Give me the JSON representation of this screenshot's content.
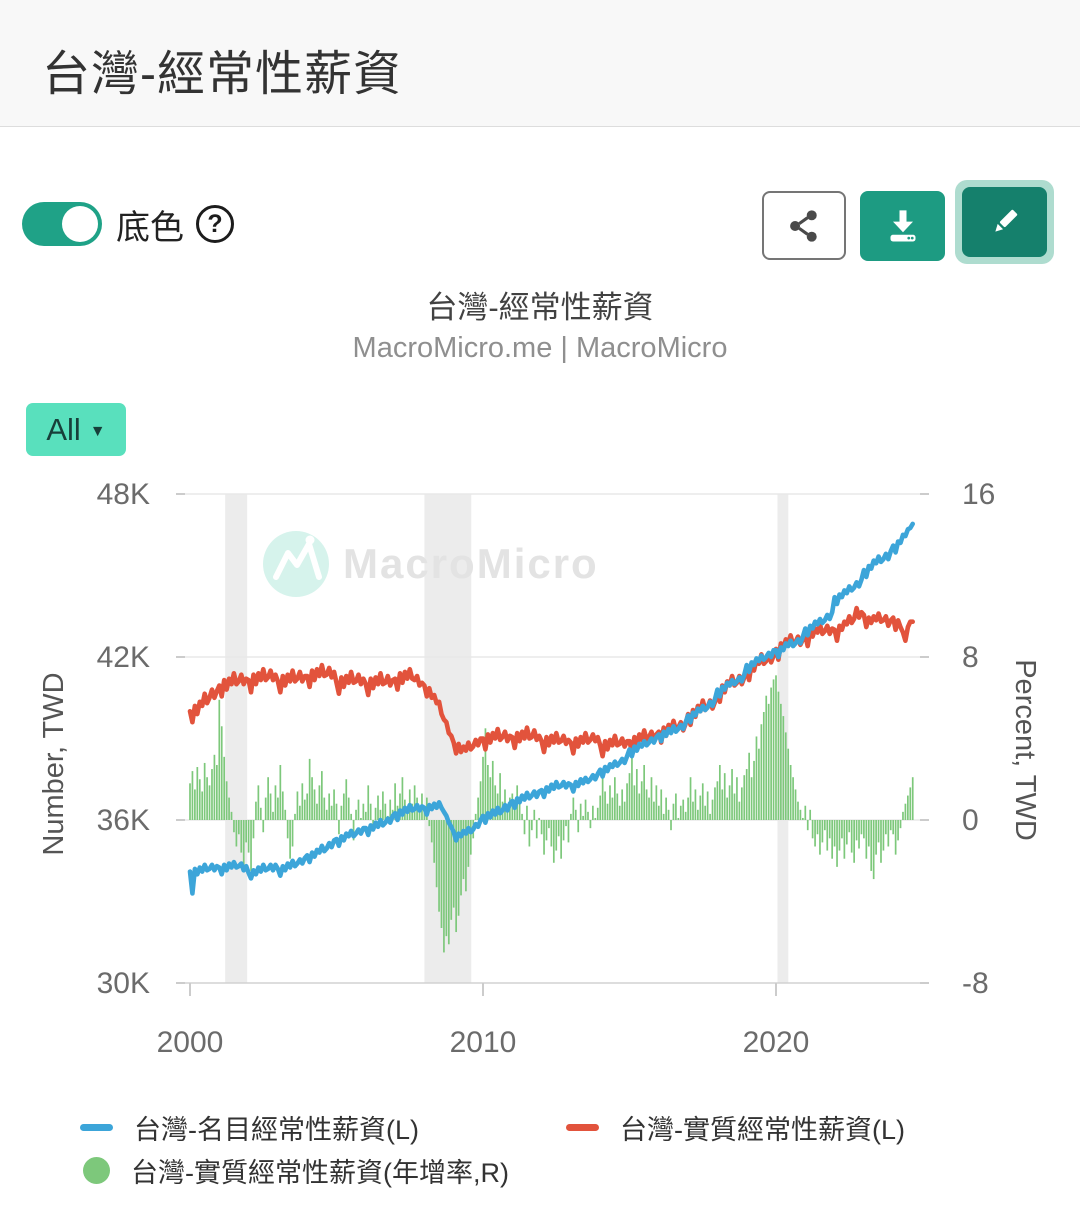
{
  "page": {
    "title": "台灣-經常性薪資"
  },
  "controls": {
    "toggle_label": "底色",
    "toggle_state": "on",
    "help_glyph": "?",
    "range_label": "All",
    "range_caret": "▼"
  },
  "chart": {
    "title": "台灣-經常性薪資",
    "subtitle": "MacroMicro.me | MacroMicro",
    "watermark_text": "MacroMicro"
  },
  "chart_data": {
    "type": "mixed",
    "title": "台灣-經常性薪資",
    "x_axis": {
      "start_year": 2000,
      "interval_months": 1,
      "end_year": 2024.75,
      "tick_labels": [
        "2000",
        "2010",
        "2020"
      ],
      "tick_values": [
        2000,
        2010,
        2020
      ]
    },
    "left_axis": {
      "label": "Number, TWD",
      "unit": "thousand TWD",
      "tick_labels": [
        "48K",
        "42K",
        "36K",
        "30K"
      ],
      "tick_values": [
        48,
        42,
        36,
        30
      ],
      "min": 30,
      "max": 48
    },
    "right_axis": {
      "label": "Percent, TWD",
      "unit": "%",
      "tick_labels": [
        "16",
        "8",
        "0",
        "-8"
      ],
      "tick_values": [
        16,
        8,
        0,
        -8
      ],
      "min": -8,
      "max": 16
    },
    "recession_bands": [
      [
        2001.2,
        2001.95
      ],
      [
        2008.0,
        2009.6
      ],
      [
        2020.05,
        2020.42
      ]
    ],
    "band_color": "#ececec",
    "grid_color": "#e8e8e8",
    "series": [
      {
        "name": "台灣-名目經常性薪資(L)",
        "type": "line",
        "axis": "left",
        "color": "#3ca5d9",
        "values": [
          34.1,
          33.3,
          34.2,
          34.0,
          34.25,
          34.1,
          34.35,
          34.15,
          34.2,
          34.35,
          34.15,
          34.3,
          34.25,
          34.0,
          34.35,
          34.15,
          34.4,
          34.25,
          34.45,
          34.25,
          34.3,
          34.4,
          34.15,
          34.3,
          34.05,
          33.85,
          34.15,
          34.0,
          34.25,
          34.1,
          34.35,
          34.15,
          34.2,
          34.35,
          34.15,
          34.35,
          34.2,
          33.95,
          34.3,
          34.15,
          34.4,
          34.25,
          34.5,
          34.3,
          34.4,
          34.55,
          34.4,
          34.6,
          34.7,
          34.45,
          34.8,
          34.65,
          34.9,
          34.8,
          35.05,
          34.85,
          34.95,
          35.15,
          35.0,
          35.25,
          35.3,
          35.05,
          35.4,
          35.25,
          35.5,
          35.4,
          35.6,
          35.4,
          35.5,
          35.65,
          35.5,
          35.7,
          35.7,
          35.45,
          35.8,
          35.65,
          35.9,
          35.75,
          36.0,
          35.8,
          35.9,
          36.05,
          35.9,
          36.15,
          36.25,
          36.0,
          36.35,
          36.2,
          36.45,
          36.3,
          36.55,
          36.35,
          36.4,
          36.55,
          36.35,
          36.5,
          36.45,
          36.2,
          36.55,
          36.4,
          36.6,
          36.45,
          36.65,
          36.45,
          36.3,
          36.15,
          35.9,
          35.75,
          35.55,
          35.25,
          35.5,
          35.4,
          35.6,
          35.5,
          35.7,
          35.55,
          35.65,
          35.85,
          35.75,
          36.0,
          36.15,
          35.9,
          36.25,
          36.1,
          36.35,
          36.2,
          36.45,
          36.25,
          36.35,
          36.55,
          36.35,
          36.6,
          36.7,
          36.45,
          36.8,
          36.65,
          36.9,
          36.75,
          37.0,
          36.8,
          36.9,
          37.05,
          36.85,
          37.05,
          37.1,
          36.85,
          37.2,
          37.05,
          37.3,
          37.15,
          37.4,
          37.2,
          37.25,
          37.4,
          37.2,
          37.35,
          37.3,
          37.05,
          37.4,
          37.25,
          37.5,
          37.35,
          37.55,
          37.4,
          37.5,
          37.65,
          37.5,
          37.7,
          37.85,
          37.6,
          37.95,
          37.8,
          38.05,
          37.95,
          38.15,
          38.0,
          38.1,
          38.25,
          38.1,
          38.35,
          38.6,
          38.35,
          38.7,
          38.55,
          38.8,
          38.7,
          38.9,
          38.75,
          38.85,
          39.0,
          38.85,
          39.05,
          39.15,
          38.9,
          39.25,
          39.1,
          39.35,
          39.2,
          39.45,
          39.25,
          39.35,
          39.5,
          39.35,
          39.6,
          39.85,
          39.6,
          39.95,
          39.85,
          40.1,
          40.0,
          40.2,
          40.05,
          40.15,
          40.35,
          40.2,
          40.45,
          40.8,
          40.55,
          40.9,
          40.8,
          41.05,
          40.95,
          41.15,
          41.0,
          41.1,
          41.25,
          41.1,
          41.35,
          41.7,
          41.45,
          41.8,
          41.7,
          41.95,
          41.85,
          42.05,
          41.9,
          42.0,
          42.15,
          42.0,
          42.25,
          42.25,
          42.0,
          42.35,
          42.25,
          42.5,
          42.4,
          42.6,
          42.4,
          42.5,
          42.65,
          42.5,
          42.75,
          43.05,
          42.8,
          43.15,
          43.05,
          43.3,
          43.2,
          43.4,
          43.25,
          43.35,
          43.55,
          43.4,
          43.65,
          44.2,
          43.95,
          44.3,
          44.2,
          44.45,
          44.35,
          44.6,
          44.45,
          44.55,
          44.75,
          44.6,
          44.85,
          45.2,
          44.95,
          45.35,
          45.25,
          45.55,
          45.45,
          45.7,
          45.5,
          45.6,
          45.8,
          45.6,
          45.9,
          46.1,
          45.85,
          46.25,
          46.2,
          46.5,
          46.45,
          46.7,
          46.75,
          46.9
        ]
      },
      {
        "name": "台灣-實質經常性薪資(L)",
        "type": "line",
        "axis": "left",
        "color": "#e2533c",
        "values": [
          40.0,
          39.6,
          40.2,
          39.9,
          40.35,
          40.2,
          40.65,
          40.3,
          40.5,
          40.8,
          40.5,
          40.75,
          40.95,
          40.55,
          41.15,
          40.8,
          41.2,
          41.0,
          41.4,
          41.0,
          41.1,
          41.35,
          41.0,
          41.2,
          41.15,
          40.7,
          41.35,
          41.0,
          41.4,
          41.15,
          41.55,
          41.15,
          41.25,
          41.5,
          41.15,
          41.35,
          41.1,
          40.7,
          41.3,
          40.95,
          41.35,
          41.1,
          41.5,
          41.1,
          41.2,
          41.45,
          41.1,
          41.3,
          41.3,
          40.9,
          41.5,
          41.15,
          41.55,
          41.3,
          41.7,
          41.3,
          41.35,
          41.6,
          41.25,
          41.45,
          41.05,
          40.65,
          41.25,
          40.9,
          41.3,
          41.05,
          41.45,
          41.05,
          41.1,
          41.35,
          41.0,
          41.2,
          41.0,
          40.6,
          41.2,
          40.85,
          41.25,
          41.0,
          41.4,
          41.0,
          41.05,
          41.3,
          40.95,
          41.15,
          41.2,
          40.8,
          41.4,
          41.05,
          41.45,
          41.2,
          41.55,
          41.2,
          41.15,
          41.3,
          40.95,
          41.05,
          40.95,
          40.55,
          40.85,
          40.5,
          40.6,
          40.3,
          40.35,
          39.9,
          39.7,
          39.6,
          39.2,
          39.1,
          38.85,
          38.45,
          38.8,
          38.5,
          38.7,
          38.55,
          38.85,
          38.6,
          38.7,
          38.95,
          38.75,
          39.0,
          39.0,
          38.6,
          39.15,
          38.85,
          39.2,
          39.0,
          39.35,
          38.95,
          39.05,
          39.25,
          38.9,
          39.1,
          39.05,
          38.65,
          39.2,
          38.9,
          39.25,
          39.0,
          39.4,
          39.0,
          39.05,
          39.3,
          38.95,
          39.1,
          38.9,
          38.5,
          39.05,
          38.75,
          39.1,
          38.85,
          39.2,
          38.85,
          38.9,
          39.1,
          38.8,
          38.95,
          38.85,
          38.45,
          39.0,
          38.7,
          39.05,
          38.85,
          39.2,
          38.85,
          38.95,
          39.15,
          38.9,
          39.05,
          38.75,
          38.35,
          38.9,
          38.6,
          38.95,
          38.75,
          39.1,
          38.75,
          38.8,
          39.0,
          38.7,
          38.9,
          38.9,
          38.5,
          39.05,
          38.75,
          39.15,
          38.95,
          39.3,
          38.95,
          39.05,
          39.25,
          38.95,
          39.15,
          39.25,
          38.85,
          39.4,
          39.1,
          39.5,
          39.3,
          39.65,
          39.3,
          39.4,
          39.6,
          39.3,
          39.55,
          39.9,
          39.5,
          40.05,
          39.8,
          40.2,
          40.0,
          40.4,
          40.05,
          40.15,
          40.4,
          40.1,
          40.35,
          40.75,
          40.35,
          40.95,
          40.7,
          41.1,
          40.95,
          41.3,
          40.95,
          41.05,
          41.3,
          41.0,
          41.25,
          41.55,
          41.15,
          41.75,
          41.5,
          41.9,
          41.75,
          42.1,
          41.75,
          41.85,
          42.1,
          41.8,
          42.05,
          42.3,
          41.9,
          42.5,
          42.3,
          42.65,
          42.5,
          42.8,
          42.45,
          42.55,
          42.75,
          42.45,
          42.65,
          42.8,
          42.4,
          42.95,
          42.75,
          43.05,
          42.9,
          43.2,
          42.85,
          42.95,
          43.15,
          42.85,
          43.05,
          43.0,
          42.6,
          43.15,
          43.0,
          43.3,
          43.2,
          43.5,
          43.25,
          43.4,
          43.8,
          43.45,
          43.65,
          43.55,
          43.1,
          43.45,
          43.25,
          43.5,
          43.35,
          43.6,
          43.3,
          43.35,
          43.5,
          43.15,
          43.35,
          43.45,
          43.0,
          43.35,
          43.1,
          42.9,
          42.6,
          43.1,
          43.3,
          43.3
        ]
      },
      {
        "name": "台灣-實質經常性薪資(年增率,R)",
        "type": "bar",
        "axis": "right",
        "color": "#7dc87b",
        "values": [
          1.8,
          2.4,
          1.5,
          2.6,
          2.0,
          1.4,
          2.8,
          2.1,
          1.7,
          2.5,
          3.2,
          2.7,
          5.9,
          4.6,
          3.1,
          1.9,
          1.1,
          0.4,
          -0.6,
          -1.3,
          -0.7,
          -1.6,
          -2.3,
          -1.1,
          -1.6,
          -2.5,
          -0.9,
          0.9,
          1.7,
          0.6,
          -0.6,
          1.1,
          2.1,
          1.3,
          0.4,
          1.7,
          1.1,
          2.7,
          1.4,
          0.5,
          -0.9,
          -1.9,
          -1.3,
          0.3,
          1.4,
          0.7,
          1.8,
          1.0,
          1.3,
          3.0,
          2.1,
          1.5,
          0.8,
          1.7,
          2.4,
          1.1,
          0.5,
          1.3,
          0.7,
          1.5,
          0.8,
          -0.7,
          0.7,
          1.3,
          2.0,
          1.1,
          0.3,
          -1.0,
          0.5,
          1.0,
          0.1,
          0.8,
          0.4,
          1.7,
          0.8,
          -0.5,
          0.6,
          1.2,
          0.5,
          1.4,
          0.8,
          0.2,
          1.0,
          0.5,
          1.8,
          0.7,
          1.3,
          2.1,
          1.0,
          0.4,
          1.5,
          0.8,
          1.7,
          1.1,
          0.6,
          1.3,
          0.5,
          1.1,
          -0.3,
          -1.1,
          -2.1,
          -3.3,
          -4.5,
          -5.3,
          -6.5,
          -5.7,
          -6.1,
          -4.9,
          -4.3,
          -5.5,
          -4.7,
          -3.7,
          -2.9,
          -3.5,
          -2.3,
          -1.7,
          -0.9,
          0.3,
          1.1,
          1.9,
          3.1,
          4.5,
          2.7,
          2.1,
          2.9,
          1.7,
          1.3,
          2.3,
          0.9,
          1.5,
          0.7,
          1.1,
          1.3,
          0.5,
          1.7,
          0.9,
          0.3,
          -0.7,
          0.7,
          -1.3,
          -0.5,
          0.5,
          -0.9,
          0.1,
          -0.7,
          -1.7,
          -1.0,
          -0.4,
          -1.3,
          -2.1,
          -1.5,
          -0.8,
          -1.9,
          -1.0,
          -0.3,
          -1.1,
          0.3,
          1.1,
          0.5,
          -0.6,
          0.8,
          0.2,
          1.0,
          0.4,
          -0.4,
          0.7,
          0.1,
          0.6,
          1.2,
          2.5,
          1.4,
          0.8,
          1.7,
          1.1,
          2.1,
          1.3,
          0.7,
          1.5,
          0.9,
          1.8,
          2.3,
          3.3,
          1.7,
          2.5,
          1.3,
          1.9,
          2.7,
          1.5,
          1.1,
          2.1,
          0.9,
          1.7,
          0.7,
          1.5,
          0.3,
          1.1,
          0.5,
          -0.5,
          0.8,
          1.3,
          0.1,
          0.7,
          1.0,
          0.4,
          1.1,
          2.1,
          0.9,
          1.5,
          0.5,
          1.2,
          1.8,
          0.7,
          1.4,
          0.3,
          1.0,
          1.6,
          1.9,
          2.7,
          1.5,
          2.3,
          1.1,
          1.7,
          2.5,
          1.3,
          2.1,
          0.9,
          1.6,
          2.2,
          2.5,
          3.3,
          2.1,
          2.9,
          4.1,
          3.5,
          4.7,
          5.3,
          6.1,
          5.7,
          6.5,
          6.9,
          7.1,
          6.3,
          5.7,
          5.1,
          4.3,
          3.5,
          2.7,
          2.1,
          1.5,
          0.9,
          0.5,
          0.1,
          0.7,
          -0.5,
          0.5,
          -0.9,
          -1.3,
          -0.7,
          -1.7,
          -1.1,
          -0.5,
          -1.5,
          -0.9,
          -1.9,
          -1.3,
          -2.3,
          -1.5,
          -0.9,
          -1.9,
          -1.2,
          -0.6,
          -1.6,
          -2.1,
          -1.0,
          -1.4,
          -0.7,
          -0.9,
          -1.9,
          -1.3,
          -2.5,
          -2.9,
          -1.7,
          -1.1,
          -2.1,
          -1.5,
          -0.7,
          -1.3,
          -0.5,
          -0.7,
          -1.7,
          -1.0,
          -0.4,
          0.4,
          0.8,
          1.2,
          1.6,
          2.1
        ]
      }
    ]
  }
}
